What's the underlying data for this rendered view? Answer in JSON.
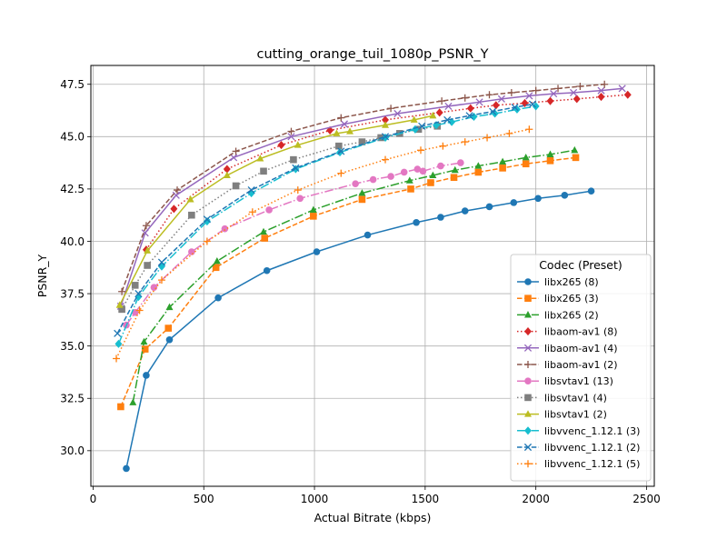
{
  "chart_data": {
    "type": "line",
    "title": "cutting_orange_tuil_1080p_PSNR_Y",
    "xlabel": "Actual Bitrate (kbps)",
    "ylabel": "PSNR_Y",
    "xlim": [
      -10,
      2535
    ],
    "ylim": [
      28.3,
      48.4
    ],
    "xticks": [
      0,
      500,
      1000,
      1500,
      2000,
      2500
    ],
    "xtick_labels": [
      "0",
      "500",
      "1000",
      "1500",
      "2000",
      "2500"
    ],
    "yticks": [
      30.0,
      32.5,
      35.0,
      37.5,
      40.0,
      42.5,
      45.0,
      47.5
    ],
    "ytick_labels": [
      "30.0",
      "32.5",
      "35.0",
      "37.5",
      "40.0",
      "42.5",
      "45.0",
      "47.5"
    ],
    "grid": true,
    "legend": {
      "title": "Codec (Preset)",
      "placement": "lower-right"
    },
    "series": [
      {
        "name": "libx265 (8)",
        "color": "#1f77b4",
        "marker": "circle",
        "dash": "solid",
        "x": [
          150,
          240,
          345,
          565,
          785,
          1010,
          1240,
          1460,
          1570,
          1680,
          1790,
          1900,
          2010,
          2130,
          2250
        ],
        "y": [
          29.15,
          33.6,
          35.3,
          37.3,
          38.6,
          39.5,
          40.3,
          40.9,
          41.15,
          41.45,
          41.65,
          41.85,
          42.05,
          42.2,
          42.4
        ]
      },
      {
        "name": "libx265 (3)",
        "color": "#ff7f0e",
        "marker": "square",
        "dash": "dashed",
        "x": [
          125,
          235,
          340,
          555,
          775,
          995,
          1215,
          1435,
          1525,
          1630,
          1740,
          1850,
          1955,
          2065,
          2180
        ],
        "y": [
          32.1,
          34.85,
          35.85,
          38.75,
          40.15,
          41.2,
          42.0,
          42.5,
          42.8,
          43.05,
          43.3,
          43.5,
          43.7,
          43.85,
          44.0
        ]
      },
      {
        "name": "libx265 (2)",
        "color": "#2ca02c",
        "marker": "triangle-up",
        "dash": "dashdot",
        "x": [
          180,
          230,
          345,
          560,
          770,
          995,
          1215,
          1430,
          1535,
          1635,
          1740,
          1850,
          1955,
          2065,
          2175
        ],
        "y": [
          32.3,
          35.2,
          36.85,
          39.05,
          40.45,
          41.5,
          42.3,
          42.9,
          43.15,
          43.4,
          43.6,
          43.8,
          44.0,
          44.15,
          44.35
        ]
      },
      {
        "name": "libaom-av1 (8)",
        "color": "#d62728",
        "marker": "diamond",
        "dash": "dotted",
        "x": [
          240,
          365,
          605,
          850,
          1070,
          1320,
          1565,
          1705,
          1820,
          1950,
          2065,
          2185,
          2295,
          2415
        ],
        "y": [
          39.6,
          41.55,
          43.45,
          44.6,
          45.3,
          45.8,
          46.15,
          46.35,
          46.5,
          46.6,
          46.7,
          46.8,
          46.9,
          47.0
        ]
      },
      {
        "name": "libaom-av1 (4)",
        "color": "#9467bd",
        "marker": "x",
        "dash": "solid",
        "x": [
          125,
          235,
          375,
          635,
          895,
          1135,
          1375,
          1605,
          1745,
          1845,
          1970,
          2080,
          2170,
          2295,
          2390
        ],
        "y": [
          36.9,
          40.4,
          42.2,
          44.0,
          45.0,
          45.6,
          46.1,
          46.45,
          46.65,
          46.8,
          46.95,
          47.05,
          47.1,
          47.2,
          47.3
        ]
      },
      {
        "name": "libaom-av1 (2)",
        "color": "#8c564b",
        "marker": "plus",
        "dash": "dashed",
        "x": [
          130,
          240,
          380,
          645,
          895,
          1120,
          1345,
          1575,
          1680,
          1790,
          1890,
          2000,
          2100,
          2200,
          2310
        ],
        "y": [
          37.6,
          40.75,
          42.45,
          44.3,
          45.25,
          45.9,
          46.35,
          46.7,
          46.85,
          47.0,
          47.1,
          47.2,
          47.3,
          47.4,
          47.5
        ]
      },
      {
        "name": "libsvtav1 (13)",
        "color": "#e377c2",
        "marker": "circle",
        "dash": "dashdot",
        "x": [
          150,
          190,
          275,
          445,
          595,
          795,
          935,
          1185,
          1265,
          1345,
          1405,
          1465,
          1490,
          1570,
          1660
        ],
        "y": [
          36.0,
          36.6,
          37.8,
          39.5,
          40.6,
          41.5,
          42.05,
          42.75,
          42.95,
          43.1,
          43.3,
          43.45,
          43.35,
          43.6,
          43.75
        ]
      },
      {
        "name": "libsvtav1 (4)",
        "color": "#7f7f7f",
        "marker": "square",
        "dash": "dotted",
        "x": [
          130,
          190,
          245,
          445,
          645,
          770,
          905,
          1110,
          1215,
          1300,
          1385,
          1470,
          1555
        ],
        "y": [
          36.75,
          37.9,
          38.85,
          41.25,
          42.65,
          43.35,
          43.9,
          44.55,
          44.75,
          44.95,
          45.15,
          45.35,
          45.5
        ]
      },
      {
        "name": "libsvtav1 (2)",
        "color": "#bcbd22",
        "marker": "triangle-up",
        "dash": "solid",
        "x": [
          120,
          245,
          440,
          605,
          755,
          925,
          1100,
          1160,
          1320,
          1450,
          1535
        ],
        "y": [
          36.95,
          39.55,
          42.0,
          43.15,
          43.95,
          44.6,
          45.15,
          45.25,
          45.55,
          45.8,
          46.0
        ]
      },
      {
        "name": "libvvenc_1.12.1 (3)",
        "color": "#17becf",
        "marker": "diamond",
        "dash": "dashdot",
        "x": [
          115,
          205,
          310,
          515,
          715,
          915,
          1115,
          1320,
          1455,
          1550,
          1620,
          1720,
          1815,
          1915,
          2000
        ],
        "y": [
          35.1,
          37.35,
          38.8,
          40.95,
          42.3,
          43.45,
          44.25,
          44.95,
          45.35,
          45.55,
          45.7,
          45.95,
          46.1,
          46.3,
          46.45
        ]
      },
      {
        "name": "libvvenc_1.12.1 (2)",
        "color": "#1f77b4",
        "marker": "x",
        "dash": "dashed",
        "x": [
          110,
          205,
          310,
          515,
          715,
          915,
          1120,
          1320,
          1485,
          1600,
          1700,
          1805,
          1905,
          1985
        ],
        "y": [
          35.6,
          37.5,
          39.0,
          41.05,
          42.45,
          43.5,
          44.3,
          45.0,
          45.5,
          45.8,
          46.0,
          46.2,
          46.4,
          46.55
        ]
      },
      {
        "name": "libvvenc_1.12.1 (5)",
        "color": "#ff7f0e",
        "marker": "plus",
        "dash": "dotted",
        "x": [
          105,
          210,
          310,
          515,
          720,
          925,
          1120,
          1320,
          1480,
          1580,
          1680,
          1780,
          1880,
          1970
        ],
        "y": [
          34.4,
          36.7,
          38.15,
          40.0,
          41.4,
          42.45,
          43.25,
          43.9,
          44.35,
          44.55,
          44.75,
          44.95,
          45.15,
          45.35
        ]
      }
    ]
  }
}
